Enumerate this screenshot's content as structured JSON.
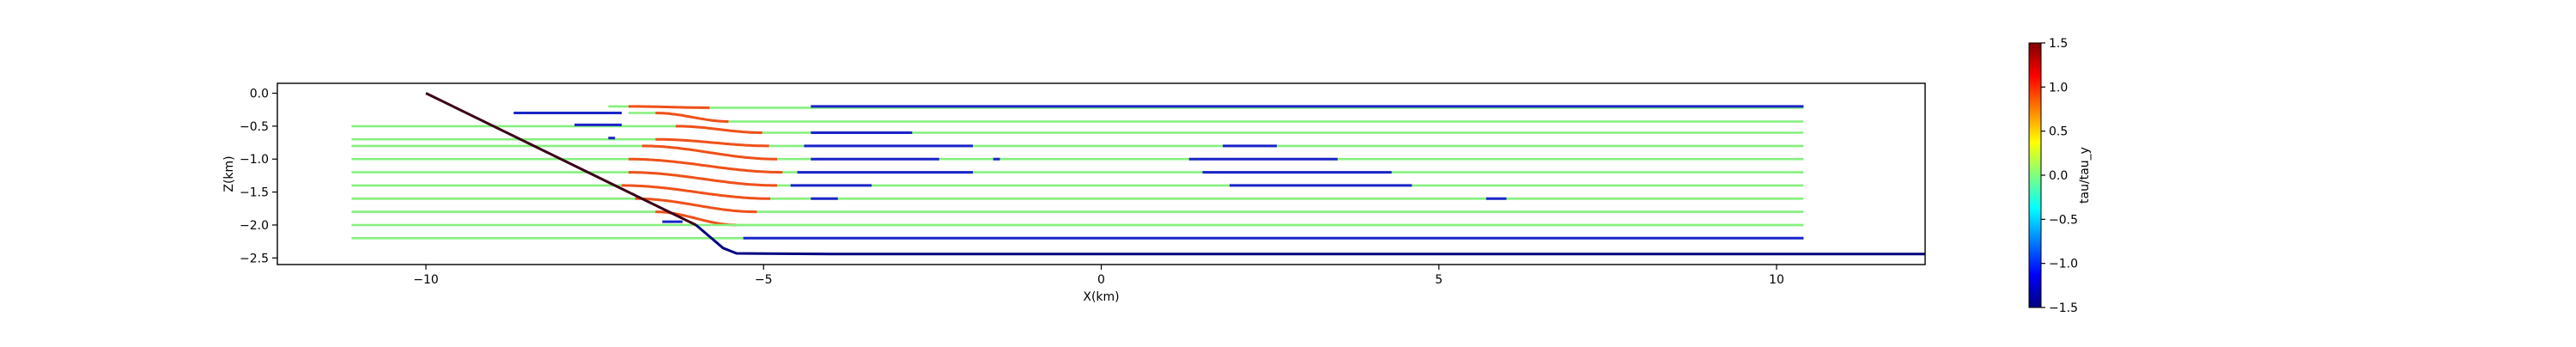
{
  "chart_data": {
    "type": "line",
    "title": "",
    "xlabel": "X(km)",
    "ylabel": "Z(km)",
    "xlim": [
      -12.2,
      12.2
    ],
    "ylim": [
      -2.6,
      0.15
    ],
    "xticks": [
      -10,
      -5,
      0,
      5,
      10
    ],
    "xtick_labels": [
      "−10",
      "−5",
      "0",
      "5",
      "10"
    ],
    "yticks": [
      0.0,
      -0.5,
      -1.0,
      -1.5,
      -2.0,
      -2.5
    ],
    "ytick_labels": [
      "0.0",
      "−0.5",
      "−1.0",
      "−1.5",
      "−2.0",
      "−2.5"
    ],
    "grid": false,
    "legend": "none",
    "colormap": "jet",
    "colorbar": {
      "label": "tau/tau_y",
      "range": [
        -1.5,
        1.5
      ],
      "ticks": [
        1.5,
        1.0,
        0.5,
        0.0,
        -0.5,
        -1.0,
        -1.5
      ],
      "tick_labels": [
        "1.5",
        "1.0",
        "0.5",
        "0.0",
        "−0.5",
        "−1.0",
        "−1.5"
      ],
      "colors": [
        "#00007f",
        "#0000ff",
        "#007fff",
        "#00ffff",
        "#7fff7f",
        "#ffff00",
        "#ff7f00",
        "#ff0000",
        "#7f0000"
      ]
    },
    "boundaries": [
      {
        "name": "slope-boundary",
        "color": "#3a0018",
        "x": [
          -10.0,
          -6.0
        ],
        "z": [
          0.0,
          -2.0
        ]
      },
      {
        "name": "bottom-boundary",
        "color": "#000080",
        "x": [
          -6.0,
          -5.6,
          -5.4,
          -4.0,
          12.2
        ],
        "z": [
          -2.0,
          -2.35,
          -2.43,
          -2.44,
          -2.44
        ]
      }
    ],
    "flowlines": [
      {
        "z": -0.2,
        "green_start": -7.3,
        "red": [
          -7.0,
          -5.8
        ],
        "red_drop": 0.02,
        "blue_start": -4.3,
        "blue_z": -0.2
      },
      {
        "z": -0.3,
        "green_start": -7.0,
        "red": [
          -6.6,
          -5.5
        ],
        "red_drop": 0.13,
        "blue_start": -4.3,
        "blue_z": -0.4
      },
      {
        "z": -0.5,
        "green_start": -11.1,
        "red": [
          -6.3,
          -5.0
        ],
        "red_drop": 0.1,
        "blue_start": -4.5,
        "blue_z": -0.6
      },
      {
        "z": -0.7,
        "green_start": -11.1,
        "red": [
          -6.6,
          -4.9
        ],
        "red_drop": 0.1,
        "blue_start": -4.4,
        "blue_z": -0.8
      },
      {
        "z": -0.8,
        "green_start": -11.1,
        "red": [
          -6.8,
          -4.8
        ],
        "red_drop": 0.2,
        "blue_start": -4.3,
        "blue_z": -1.0
      },
      {
        "z": -1.0,
        "green_start": -11.1,
        "red": [
          -7.0,
          -4.7
        ],
        "red_drop": 0.2,
        "blue_start": -4.5,
        "blue_z": -1.2
      },
      {
        "z": -1.2,
        "green_start": -11.1,
        "red": [
          -7.0,
          -4.8
        ],
        "red_drop": 0.2,
        "blue_start": -4.6,
        "blue_z": -1.4
      },
      {
        "z": -1.4,
        "green_start": -11.1,
        "red": [
          -7.1,
          -4.9
        ],
        "red_drop": 0.2,
        "blue_start": -4.3,
        "blue_z": -1.6
      },
      {
        "z": -1.6,
        "green_start": -11.1,
        "red": [
          -6.9,
          -5.1
        ],
        "red_drop": 0.2,
        "blue_start": null,
        "blue_z": -1.8
      },
      {
        "z": -1.8,
        "green_start": -11.1,
        "red": [
          -6.6,
          -5.4
        ],
        "red_drop": 0.2,
        "blue_start": null,
        "blue_z": -2.0
      },
      {
        "z": -2.0,
        "green_start": -11.1,
        "red": null,
        "red_drop": 0,
        "blue_start": null,
        "blue_z": -2.0
      },
      {
        "z": -2.2,
        "green_start": -11.1,
        "red": null,
        "red_drop": 0,
        "blue_start": -5.2,
        "blue_z": -2.2
      }
    ],
    "flowline_end": 10.4,
    "blue_segments": [
      {
        "x": [
          -4.3,
          10.4
        ],
        "z": -0.2
      },
      {
        "x": [
          -8.7,
          -7.1
        ],
        "z": -0.3
      },
      {
        "x": [
          -7.8,
          -7.1
        ],
        "z": -0.48
      },
      {
        "x": [
          -7.3,
          -7.2
        ],
        "z": -0.68
      },
      {
        "x": [
          -4.3,
          -2.8
        ],
        "z": -0.6
      },
      {
        "x": [
          -4.4,
          -1.9
        ],
        "z": -0.8
      },
      {
        "x": [
          -4.3,
          -2.4
        ],
        "z": -1.0
      },
      {
        "x": [
          -1.6,
          -1.5
        ],
        "z": -1.0
      },
      {
        "x": [
          1.3,
          3.5
        ],
        "z": -1.0
      },
      {
        "x": [
          1.8,
          2.6
        ],
        "z": -0.8
      },
      {
        "x": [
          -4.5,
          -1.9
        ],
        "z": -1.2
      },
      {
        "x": [
          -4.6,
          -3.4
        ],
        "z": -1.4
      },
      {
        "x": [
          -4.3,
          -3.9
        ],
        "z": -1.6
      },
      {
        "x": [
          1.5,
          4.3
        ],
        "z": -1.2
      },
      {
        "x": [
          1.9,
          4.6
        ],
        "z": -1.4
      },
      {
        "x": [
          5.7,
          6.0
        ],
        "z": -1.6
      },
      {
        "x": [
          -6.5,
          -6.2
        ],
        "z": -1.95
      },
      {
        "x": [
          -5.3,
          10.4
        ],
        "z": -2.2
      }
    ]
  }
}
